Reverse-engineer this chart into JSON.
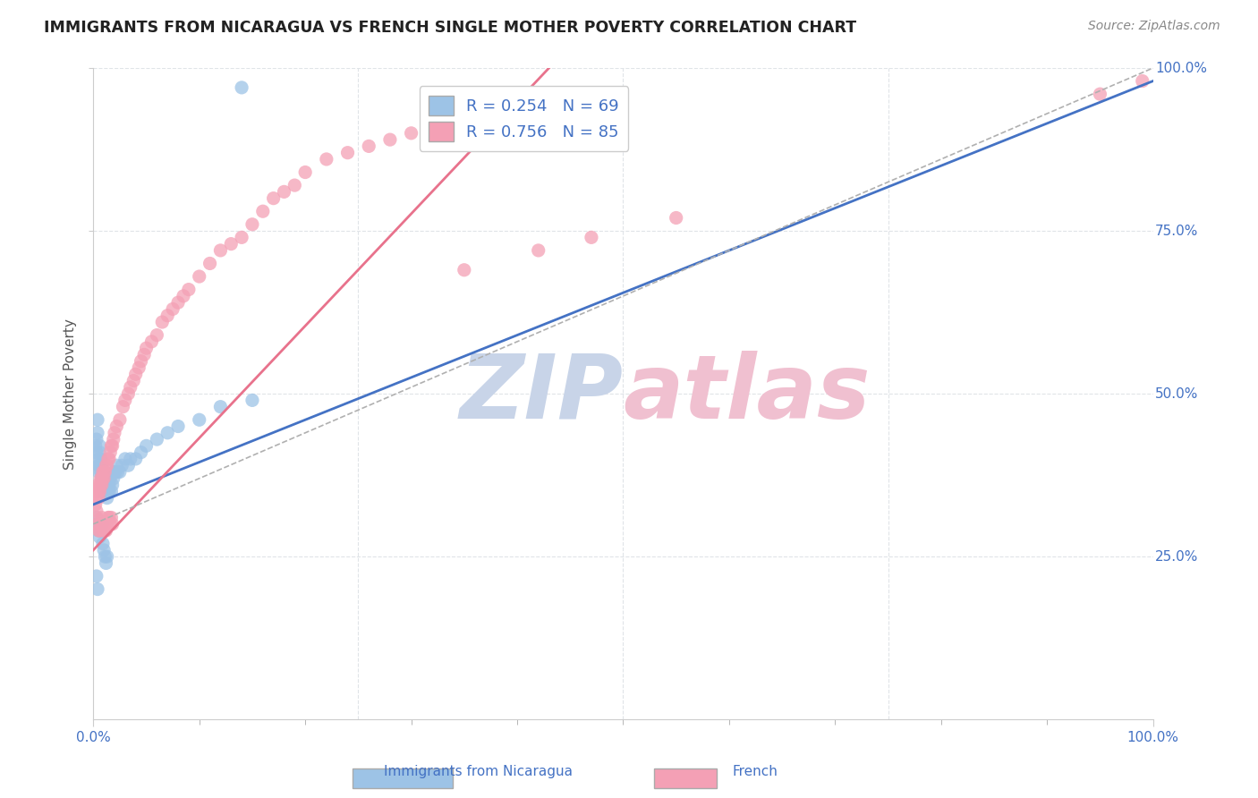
{
  "title": "IMMIGRANTS FROM NICARAGUA VS FRENCH SINGLE MOTHER POVERTY CORRELATION CHART",
  "source": "Source: ZipAtlas.com",
  "ylabel": "Single Mother Poverty",
  "xlim": [
    0.0,
    1.0
  ],
  "ylim": [
    0.0,
    1.0
  ],
  "x_ticks": [
    0.0,
    1.0
  ],
  "x_tick_labels": [
    "0.0%",
    "100.0%"
  ],
  "y_tick_positions": [
    0.25,
    0.5,
    0.75,
    1.0
  ],
  "y_tick_labels": [
    "25.0%",
    "50.0%",
    "75.0%",
    "100.0%"
  ],
  "legend_line1": "R = 0.254   N = 69",
  "legend_line2": "R = 0.756   N = 85",
  "color_nicaragua": "#9dc3e6",
  "color_french": "#f4a0b5",
  "line_color_nicaragua": "#4472c4",
  "line_color_french": "#e8728c",
  "line_color_combined": "#b0b0b0",
  "watermark_zip_color": "#c8d4e8",
  "watermark_atlas_color": "#f0c0d0",
  "background_color": "#ffffff",
  "title_color": "#222222",
  "tick_label_color": "#4472c4",
  "grid_color": "#e0e4e8",
  "nic_line_x0": 0.0,
  "nic_line_y0": 0.33,
  "nic_line_x1": 1.0,
  "nic_line_y1": 0.98,
  "fr_line_x0": 0.0,
  "fr_line_y0": 0.26,
  "fr_line_x1": 0.43,
  "fr_line_y1": 1.0,
  "comb_line_x0": 0.0,
  "comb_line_y0": 0.3,
  "comb_line_x1": 1.0,
  "comb_line_y1": 1.0,
  "nicaragua_x": [
    0.002,
    0.003,
    0.003,
    0.004,
    0.004,
    0.005,
    0.005,
    0.005,
    0.006,
    0.006,
    0.006,
    0.007,
    0.007,
    0.007,
    0.008,
    0.008,
    0.008,
    0.009,
    0.009,
    0.009,
    0.01,
    0.01,
    0.01,
    0.011,
    0.011,
    0.012,
    0.012,
    0.013,
    0.013,
    0.014,
    0.014,
    0.015,
    0.015,
    0.016,
    0.017,
    0.018,
    0.019,
    0.02,
    0.021,
    0.022,
    0.023,
    0.025,
    0.027,
    0.03,
    0.033,
    0.035,
    0.04,
    0.045,
    0.05,
    0.06,
    0.07,
    0.08,
    0.1,
    0.12,
    0.15,
    0.003,
    0.004,
    0.005,
    0.006,
    0.007,
    0.008,
    0.009,
    0.01,
    0.011,
    0.012,
    0.013,
    0.003,
    0.004,
    0.14
  ],
  "nicaragua_y": [
    0.42,
    0.43,
    0.41,
    0.46,
    0.44,
    0.39,
    0.4,
    0.38,
    0.39,
    0.42,
    0.41,
    0.4,
    0.39,
    0.38,
    0.37,
    0.38,
    0.39,
    0.38,
    0.36,
    0.37,
    0.37,
    0.36,
    0.35,
    0.36,
    0.38,
    0.37,
    0.35,
    0.36,
    0.34,
    0.35,
    0.36,
    0.35,
    0.36,
    0.37,
    0.35,
    0.36,
    0.37,
    0.38,
    0.38,
    0.39,
    0.38,
    0.38,
    0.39,
    0.4,
    0.39,
    0.4,
    0.4,
    0.41,
    0.42,
    0.43,
    0.44,
    0.45,
    0.46,
    0.48,
    0.49,
    0.31,
    0.3,
    0.29,
    0.28,
    0.29,
    0.3,
    0.27,
    0.26,
    0.25,
    0.24,
    0.25,
    0.22,
    0.2,
    0.97
  ],
  "french_x": [
    0.002,
    0.003,
    0.003,
    0.004,
    0.004,
    0.005,
    0.005,
    0.006,
    0.006,
    0.007,
    0.007,
    0.008,
    0.008,
    0.009,
    0.009,
    0.01,
    0.01,
    0.011,
    0.012,
    0.013,
    0.014,
    0.015,
    0.016,
    0.017,
    0.018,
    0.019,
    0.02,
    0.022,
    0.025,
    0.028,
    0.03,
    0.033,
    0.035,
    0.038,
    0.04,
    0.043,
    0.045,
    0.048,
    0.05,
    0.055,
    0.06,
    0.065,
    0.07,
    0.075,
    0.08,
    0.085,
    0.09,
    0.1,
    0.11,
    0.12,
    0.13,
    0.14,
    0.15,
    0.16,
    0.17,
    0.18,
    0.19,
    0.2,
    0.22,
    0.24,
    0.26,
    0.28,
    0.3,
    0.003,
    0.004,
    0.005,
    0.006,
    0.007,
    0.008,
    0.009,
    0.01,
    0.011,
    0.012,
    0.013,
    0.014,
    0.015,
    0.016,
    0.017,
    0.018,
    0.35,
    0.42,
    0.47,
    0.55,
    0.95,
    0.99
  ],
  "french_y": [
    0.33,
    0.34,
    0.32,
    0.35,
    0.36,
    0.34,
    0.35,
    0.35,
    0.36,
    0.36,
    0.37,
    0.36,
    0.37,
    0.37,
    0.38,
    0.37,
    0.38,
    0.38,
    0.39,
    0.39,
    0.4,
    0.4,
    0.41,
    0.42,
    0.42,
    0.43,
    0.44,
    0.45,
    0.46,
    0.48,
    0.49,
    0.5,
    0.51,
    0.52,
    0.53,
    0.54,
    0.55,
    0.56,
    0.57,
    0.58,
    0.59,
    0.61,
    0.62,
    0.63,
    0.64,
    0.65,
    0.66,
    0.68,
    0.7,
    0.72,
    0.73,
    0.74,
    0.76,
    0.78,
    0.8,
    0.81,
    0.82,
    0.84,
    0.86,
    0.87,
    0.88,
    0.89,
    0.9,
    0.31,
    0.3,
    0.29,
    0.29,
    0.3,
    0.31,
    0.29,
    0.3,
    0.29,
    0.29,
    0.3,
    0.31,
    0.31,
    0.3,
    0.31,
    0.3,
    0.69,
    0.72,
    0.74,
    0.77,
    0.96,
    0.98
  ]
}
